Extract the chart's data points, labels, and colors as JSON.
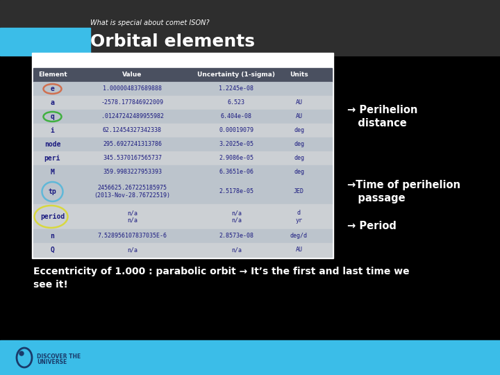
{
  "title_subtitle": "What is special about comet ISON?",
  "title_main": "Orbital elements",
  "header_bg": "#2e2e2e",
  "header_accent_color": "#3bbde8",
  "main_bg": "#000000",
  "footer_bg": "#3bbde8",
  "annotation1_arrow": "→ Perihelion\n   distance",
  "annotation2_arrow": "→Time of perihelion\n   passage",
  "annotation3_arrow": "→ Period",
  "bottom_text": "Eccentricity of 1.000 : parabolic orbit → It’s the first and last time we\nsee it!",
  "table_headers": [
    "Element",
    "Value",
    "Uncertainty (1-sigma)",
    "Units"
  ],
  "table_rows": [
    [
      "e",
      "1.000004837689888",
      "1.2245e-08",
      ""
    ],
    [
      "a",
      "-2578.177846922009",
      "6.523",
      "AU"
    ],
    [
      "q",
      ".01247242489955982",
      "6.404e-08",
      "AU"
    ],
    [
      "i",
      "62.12454327342338",
      "0.00019079",
      "deg"
    ],
    [
      "node",
      "295.6927241313786",
      "3.2025e-05",
      "deg"
    ],
    [
      "peri",
      "345.5370167565737",
      "2.9086e-05",
      "deg"
    ],
    [
      "M",
      "359.9983227953393",
      "6.3651e-06",
      "deg"
    ],
    [
      "tp",
      "2456625.267225185975\n(2013-Nov-28.76722519)",
      "2.5178e-05",
      "JED"
    ],
    [
      "period",
      "n/a\nn/a",
      "n/a\nn/a",
      "d\nyr"
    ],
    [
      "n",
      "7.528956107837035E-6",
      "2.8573e-08",
      "deg/d"
    ],
    [
      "Q",
      "n/a",
      "n/a",
      "AU"
    ]
  ],
  "circle_e_color": "#d07050",
  "circle_q_color": "#40b040",
  "circle_tp_color": "#60b8d8",
  "circle_period_color": "#d8d840",
  "row_colors": [
    "#bcc4cc",
    "#ccd0d4",
    "#bcc4cc",
    "#ccd0d4",
    "#bcc4cc",
    "#ccd0d4",
    "#bcc4cc",
    "#bcc4cc",
    "#ccd0d4",
    "#bcc4cc",
    "#ccd0d4"
  ],
  "font_color_dark": "#1a1a80",
  "font_color_header": "#ffffff"
}
